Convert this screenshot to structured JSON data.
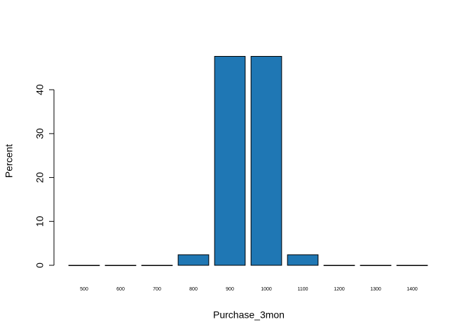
{
  "chart_data": {
    "type": "bar",
    "x_label": "Purchase_3mon",
    "y_label": "Percent",
    "categories": [
      "500",
      "600",
      "700",
      "800",
      "900",
      "1000",
      "1100",
      "1200",
      "1300",
      "1400"
    ],
    "values": [
      0,
      0,
      0,
      2.4,
      47.6,
      47.6,
      2.4,
      0,
      0,
      0
    ],
    "color": "#1f77b4",
    "ylim": [
      0,
      48
    ],
    "yticks": [
      0,
      10,
      20,
      30,
      40
    ],
    "grid": false
  }
}
